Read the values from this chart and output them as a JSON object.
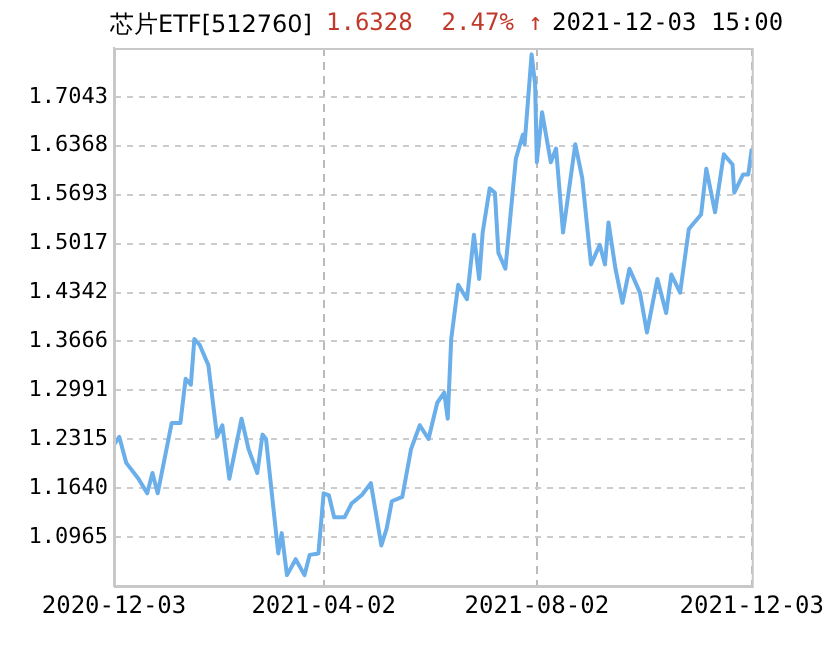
{
  "chart_data": {
    "type": "line",
    "title": "芯片ETF[512760]",
    "subtitle": "1.6328  2.47% ↑",
    "annotations": [
      "2021-12-03 15:00"
    ],
    "x": [
      "2020-12-03",
      "2020-12-06",
      "2020-12-10",
      "2020-12-17",
      "2020-12-22",
      "2020-12-25",
      "2020-12-28",
      "2021-01-05",
      "2021-01-10",
      "2021-01-13",
      "2021-01-16",
      "2021-01-18",
      "2021-01-21",
      "2021-01-26",
      "2021-01-31",
      "2021-02-03",
      "2021-02-07",
      "2021-02-14",
      "2021-02-18",
      "2021-02-23",
      "2021-02-26",
      "2021-02-28",
      "2021-03-07",
      "2021-03-09",
      "2021-03-12",
      "2021-03-17",
      "2021-03-22",
      "2021-03-25",
      "2021-03-30",
      "2021-04-02",
      "2021-04-05",
      "2021-04-08",
      "2021-04-14",
      "2021-04-18",
      "2021-04-24",
      "2021-04-29",
      "2021-05-05",
      "2021-05-08",
      "2021-05-11",
      "2021-05-17",
      "2021-05-22",
      "2021-05-27",
      "2021-06-01",
      "2021-06-06",
      "2021-06-10",
      "2021-06-12",
      "2021-06-14",
      "2021-06-18",
      "2021-06-23",
      "2021-06-27",
      "2021-06-30",
      "2021-07-02",
      "2021-07-06",
      "2021-07-09",
      "2021-07-11",
      "2021-07-15",
      "2021-07-21",
      "2021-07-25",
      "2021-07-26",
      "2021-07-30",
      "2021-08-01",
      "2021-08-02",
      "2021-08-05",
      "2021-08-10",
      "2021-08-13",
      "2021-08-17",
      "2021-08-24",
      "2021-08-28",
      "2021-09-02",
      "2021-09-07",
      "2021-09-10",
      "2021-09-12",
      "2021-09-16",
      "2021-09-20",
      "2021-09-24",
      "2021-09-30",
      "2021-10-04",
      "2021-10-10",
      "2021-10-15",
      "2021-10-18",
      "2021-10-23",
      "2021-10-28",
      "2021-11-04",
      "2021-11-07",
      "2021-11-12",
      "2021-11-17",
      "2021-11-22",
      "2021-11-23",
      "2021-11-28",
      "2021-12-01",
      "2021-12-03"
    ],
    "series": [
      {
        "color": "#6aaeea",
        "values": [
          1.224,
          1.235,
          1.199,
          1.177,
          1.157,
          1.185,
          1.157,
          1.254,
          1.254,
          1.315,
          1.307,
          1.37,
          1.362,
          1.334,
          1.235,
          1.251,
          1.177,
          1.26,
          1.218,
          1.185,
          1.238,
          1.232,
          1.074,
          1.102,
          1.044,
          1.066,
          1.044,
          1.072,
          1.074,
          1.157,
          1.154,
          1.124,
          1.124,
          1.143,
          1.155,
          1.171,
          1.085,
          1.108,
          1.146,
          1.152,
          1.218,
          1.251,
          1.232,
          1.282,
          1.296,
          1.26,
          1.37,
          1.445,
          1.425,
          1.514,
          1.453,
          1.517,
          1.578,
          1.572,
          1.489,
          1.467,
          1.619,
          1.652,
          1.639,
          1.763,
          1.722,
          1.614,
          1.683,
          1.614,
          1.633,
          1.517,
          1.639,
          1.592,
          1.473,
          1.5,
          1.473,
          1.531,
          1.467,
          1.42,
          1.467,
          1.434,
          1.379,
          1.453,
          1.406,
          1.459,
          1.434,
          1.522,
          1.542,
          1.605,
          1.545,
          1.625,
          1.611,
          1.572,
          1.597,
          1.597,
          1.6328
        ]
      }
    ],
    "xlim": [
      "2020-12-03",
      "2021-12-03"
    ],
    "xticks": [
      "2020-12-03",
      "2021-04-02",
      "2021-08-02",
      "2021-12-03"
    ],
    "ylim": [
      1.029,
      1.7718
    ],
    "yticks": [
      1.0965,
      {
        "value": 1.164,
        "label": "1.1640"
      },
      1.2315,
      1.2991,
      1.3666,
      1.4342,
      1.5017,
      1.5693,
      1.6368,
      1.7043
    ],
    "grid": true,
    "legend": false,
    "marker": "none",
    "line_style": "solid"
  }
}
